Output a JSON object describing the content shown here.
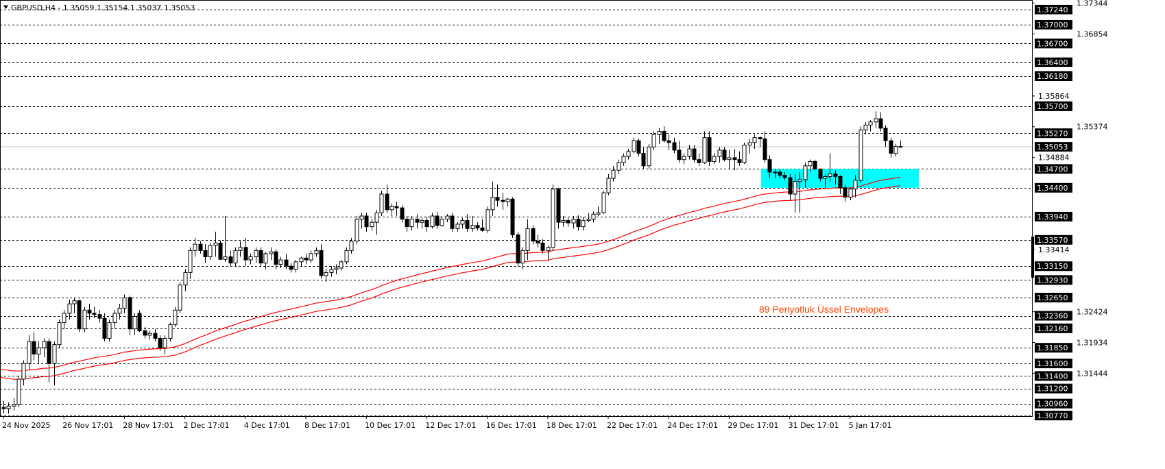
{
  "header": {
    "symbol": "GBPUSD,H4",
    "text": "GBPUSD,H4 - 1.35059 1.35154 1.35037 1.35053",
    "open": 1.35059,
    "high": 1.35154,
    "low": 1.35037,
    "close": 1.35053
  },
  "annotation": "89  Periyotluk Üssel Envelopes",
  "colors": {
    "background": "#ffffff",
    "candle_up": "#ffffff",
    "candle_down": "#000000",
    "envelope": "#ff0000",
    "annotation": "#ff4500",
    "zone": "#00ffff",
    "level_label_bg": "#000000",
    "current_price_line": "#c0c0c0"
  },
  "chart_data": {
    "type": "candlestick",
    "symbol": "GBPUSD",
    "timeframe": "H4",
    "ylim": [
      1.3077,
      1.3734
    ],
    "grid": false,
    "x_tick_labels": [
      "24 Nov 2025",
      "26 Nov 17:01",
      "28 Nov 17:01",
      "2 Dec 17:01",
      "4 Dec 17:01",
      "8 Dec 17:01",
      "10 Dec 17:01",
      "12 Dec 17:01",
      "16 Dec 17:01",
      "18 Dec 17:01",
      "22 Dec 17:01",
      "24 Dec 17:01",
      "29 Dec 17:01",
      "31 Dec 17:01",
      "5 Jan 17:01"
    ],
    "x_tick_every_bars": 12,
    "y_tick_labels": [
      "1.37344",
      "1.36854",
      "1.35864",
      "1.35374",
      "1.34884",
      "1.33414",
      "1.32424",
      "1.31934",
      "1.31444"
    ],
    "levels": [
      "1.37240",
      "1.37000",
      "1.36700",
      "1.36400",
      "1.36180",
      "1.35700",
      "1.35270",
      "1.34700",
      "1.34400",
      "1.33940",
      "1.33570",
      "1.33150",
      "1.32930",
      "1.32650",
      "1.32360",
      "1.32160",
      "1.31850",
      "1.31600",
      "1.31400",
      "1.31200",
      "1.30960",
      "1.30770"
    ],
    "current_price": "1.35053",
    "zone": {
      "from": 1.344,
      "to": 1.347
    },
    "indicator": {
      "name": "Envelopes",
      "period": 89,
      "method": "exponential"
    },
    "ohlc": [
      [
        1.309,
        1.31,
        1.308,
        1.3088
      ],
      [
        1.3088,
        1.3098,
        1.308,
        1.3092
      ],
      [
        1.3092,
        1.3105,
        1.3085,
        1.3095
      ],
      [
        1.3095,
        1.314,
        1.309,
        1.3135
      ],
      [
        1.3135,
        1.3165,
        1.3125,
        1.316
      ],
      [
        1.316,
        1.3205,
        1.315,
        1.3195
      ],
      [
        1.3195,
        1.321,
        1.3165,
        1.3175
      ],
      [
        1.3175,
        1.3195,
        1.316,
        1.3185
      ],
      [
        1.3185,
        1.32,
        1.317,
        1.3195
      ],
      [
        1.3195,
        1.32,
        1.313,
        1.316
      ],
      [
        1.316,
        1.3195,
        1.3125,
        1.319
      ],
      [
        1.319,
        1.323,
        1.3185,
        1.3225
      ],
      [
        1.3225,
        1.3245,
        1.3215,
        1.324
      ],
      [
        1.324,
        1.3262,
        1.323,
        1.3255
      ],
      [
        1.3255,
        1.3265,
        1.324,
        1.326
      ],
      [
        1.326,
        1.3262,
        1.321,
        1.3215
      ],
      [
        1.3215,
        1.325,
        1.321,
        1.3245
      ],
      [
        1.3245,
        1.3255,
        1.323,
        1.324
      ],
      [
        1.324,
        1.325,
        1.3232,
        1.3238
      ],
      [
        1.3238,
        1.3245,
        1.3225,
        1.3232
      ],
      [
        1.3232,
        1.324,
        1.3195,
        1.32
      ],
      [
        1.32,
        1.323,
        1.3195,
        1.3225
      ],
      [
        1.3225,
        1.3245,
        1.3215,
        1.324
      ],
      [
        1.324,
        1.3255,
        1.323,
        1.3248
      ],
      [
        1.3248,
        1.327,
        1.324,
        1.3265
      ],
      [
        1.3265,
        1.3268,
        1.3205,
        1.3215
      ],
      [
        1.3215,
        1.324,
        1.3205,
        1.3235
      ],
      [
        1.324,
        1.3245,
        1.321,
        1.3212
      ],
      [
        1.3212,
        1.3218,
        1.32,
        1.3205
      ],
      [
        1.3205,
        1.3212,
        1.3198,
        1.3208
      ],
      [
        1.3208,
        1.3215,
        1.3195,
        1.32
      ],
      [
        1.32,
        1.3205,
        1.318,
        1.3185
      ],
      [
        1.3185,
        1.3205,
        1.3175,
        1.32
      ],
      [
        1.32,
        1.3225,
        1.3195,
        1.3222
      ],
      [
        1.3222,
        1.325,
        1.3218,
        1.3245
      ],
      [
        1.3245,
        1.329,
        1.324,
        1.3285
      ],
      [
        1.3285,
        1.331,
        1.3275,
        1.3305
      ],
      [
        1.3305,
        1.3345,
        1.3295,
        1.334
      ],
      [
        1.334,
        1.336,
        1.333,
        1.335
      ],
      [
        1.335,
        1.3355,
        1.3335,
        1.334
      ],
      [
        1.334,
        1.335,
        1.332,
        1.333
      ],
      [
        1.333,
        1.3352,
        1.3325,
        1.3348
      ],
      [
        1.3348,
        1.337,
        1.333,
        1.3352
      ],
      [
        1.3352,
        1.3356,
        1.3325,
        1.3326
      ],
      [
        1.3326,
        1.3395,
        1.3322,
        1.333
      ],
      [
        1.333,
        1.334,
        1.3315,
        1.332
      ],
      [
        1.332,
        1.3345,
        1.3315,
        1.334
      ],
      [
        1.334,
        1.3355,
        1.333,
        1.3345
      ],
      [
        1.3345,
        1.336,
        1.3315,
        1.3325
      ],
      [
        1.3325,
        1.3335,
        1.3318,
        1.333
      ],
      [
        1.333,
        1.3345,
        1.332,
        1.334
      ],
      [
        1.334,
        1.3345,
        1.3315,
        1.332
      ],
      [
        1.332,
        1.3338,
        1.331,
        1.3335
      ],
      [
        1.3335,
        1.3345,
        1.3325,
        1.3338
      ],
      [
        1.3338,
        1.3342,
        1.331,
        1.3318
      ],
      [
        1.3318,
        1.333,
        1.3312,
        1.3325
      ],
      [
        1.3325,
        1.3335,
        1.331,
        1.3315
      ],
      [
        1.3315,
        1.332,
        1.3305,
        1.331
      ],
      [
        1.331,
        1.3325,
        1.3305,
        1.3322
      ],
      [
        1.3322,
        1.333,
        1.3315,
        1.3328
      ],
      [
        1.3328,
        1.3335,
        1.3318,
        1.3325
      ],
      [
        1.3325,
        1.334,
        1.332,
        1.3335
      ],
      [
        1.3335,
        1.3345,
        1.333,
        1.334
      ],
      [
        1.334,
        1.335,
        1.3295,
        1.33
      ],
      [
        1.33,
        1.331,
        1.329,
        1.3305
      ],
      [
        1.3305,
        1.3315,
        1.3298,
        1.331
      ],
      [
        1.331,
        1.3318,
        1.3302,
        1.3312
      ],
      [
        1.3312,
        1.3325,
        1.3308,
        1.3322
      ],
      [
        1.3322,
        1.3345,
        1.3318,
        1.334
      ],
      [
        1.334,
        1.336,
        1.3335,
        1.3355
      ],
      [
        1.3355,
        1.3395,
        1.335,
        1.339
      ],
      [
        1.339,
        1.34,
        1.3375,
        1.3395
      ],
      [
        1.3395,
        1.34,
        1.337,
        1.3378
      ],
      [
        1.3378,
        1.339,
        1.3372,
        1.3385
      ],
      [
        1.3385,
        1.3405,
        1.3365,
        1.34
      ],
      [
        1.34,
        1.3435,
        1.3395,
        1.343
      ],
      [
        1.343,
        1.3445,
        1.34,
        1.3405
      ],
      [
        1.3405,
        1.3415,
        1.3395,
        1.341
      ],
      [
        1.341,
        1.3418,
        1.3395,
        1.3408
      ],
      [
        1.3408,
        1.3412,
        1.3385,
        1.339
      ],
      [
        1.339,
        1.3395,
        1.337,
        1.3378
      ],
      [
        1.3378,
        1.3395,
        1.3372,
        1.339
      ],
      [
        1.339,
        1.3398,
        1.3375,
        1.3385
      ],
      [
        1.3385,
        1.3392,
        1.3375,
        1.3388
      ],
      [
        1.3388,
        1.3394,
        1.337,
        1.3378
      ],
      [
        1.3378,
        1.34,
        1.3375,
        1.3395
      ],
      [
        1.3395,
        1.3402,
        1.3375,
        1.338
      ],
      [
        1.338,
        1.3395,
        1.3378,
        1.339
      ],
      [
        1.339,
        1.3398,
        1.3385,
        1.3395
      ],
      [
        1.3395,
        1.34,
        1.337,
        1.3375
      ],
      [
        1.3375,
        1.3385,
        1.337,
        1.3382
      ],
      [
        1.3382,
        1.3392,
        1.3375,
        1.3388
      ],
      [
        1.3388,
        1.3398,
        1.337,
        1.3375
      ],
      [
        1.3375,
        1.3395,
        1.337,
        1.338
      ],
      [
        1.338,
        1.3385,
        1.3372,
        1.3376
      ],
      [
        1.3376,
        1.339,
        1.337,
        1.3372
      ],
      [
        1.3372,
        1.341,
        1.3368,
        1.3405
      ],
      [
        1.3405,
        1.345,
        1.3395,
        1.3425
      ],
      [
        1.3425,
        1.3445,
        1.341,
        1.342
      ],
      [
        1.342,
        1.3432,
        1.3405,
        1.3418
      ],
      [
        1.3418,
        1.3424,
        1.341,
        1.3422
      ],
      [
        1.3422,
        1.3425,
        1.336,
        1.3365
      ],
      [
        1.3365,
        1.337,
        1.3315,
        1.332
      ],
      [
        1.332,
        1.3345,
        1.331,
        1.334
      ],
      [
        1.334,
        1.339,
        1.3325,
        1.3375
      ],
      [
        1.3375,
        1.338,
        1.335,
        1.3355
      ],
      [
        1.3355,
        1.3365,
        1.3345,
        1.3352
      ],
      [
        1.3352,
        1.3358,
        1.3335,
        1.334
      ],
      [
        1.334,
        1.3348,
        1.3325,
        1.3345
      ],
      [
        1.3345,
        1.3445,
        1.334,
        1.3438
      ],
      [
        1.3438,
        1.344,
        1.3375,
        1.3385
      ],
      [
        1.3385,
        1.3395,
        1.3378,
        1.3388
      ],
      [
        1.3388,
        1.3392,
        1.3378,
        1.3384
      ],
      [
        1.3384,
        1.3395,
        1.3375,
        1.339
      ],
      [
        1.339,
        1.3396,
        1.3372,
        1.3378
      ],
      [
        1.3378,
        1.3394,
        1.3372,
        1.3388
      ],
      [
        1.3388,
        1.34,
        1.3385,
        1.339
      ],
      [
        1.339,
        1.3402,
        1.3385,
        1.3398
      ],
      [
        1.3398,
        1.341,
        1.3395,
        1.34
      ],
      [
        1.34,
        1.3435,
        1.3398,
        1.3432
      ],
      [
        1.3432,
        1.3462,
        1.3428,
        1.3455
      ],
      [
        1.3455,
        1.3475,
        1.345,
        1.3468
      ],
      [
        1.3468,
        1.3485,
        1.3462,
        1.348
      ],
      [
        1.348,
        1.3495,
        1.3475,
        1.349
      ],
      [
        1.349,
        1.3502,
        1.3485,
        1.3498
      ],
      [
        1.3498,
        1.352,
        1.3495,
        1.3515
      ],
      [
        1.3515,
        1.3518,
        1.349,
        1.3495
      ],
      [
        1.3495,
        1.3505,
        1.347,
        1.3475
      ],
      [
        1.3475,
        1.351,
        1.347,
        1.3505
      ],
      [
        1.3505,
        1.353,
        1.35,
        1.3525
      ],
      [
        1.3525,
        1.3535,
        1.351,
        1.353
      ],
      [
        1.353,
        1.3538,
        1.3512,
        1.3515
      ],
      [
        1.3515,
        1.3525,
        1.35,
        1.3512
      ],
      [
        1.3512,
        1.352,
        1.3495,
        1.35
      ],
      [
        1.35,
        1.3515,
        1.348,
        1.3485
      ],
      [
        1.3485,
        1.3495,
        1.3478,
        1.349
      ],
      [
        1.349,
        1.3508,
        1.3485,
        1.3502
      ],
      [
        1.3502,
        1.3508,
        1.348,
        1.3485
      ],
      [
        1.3485,
        1.3495,
        1.3475,
        1.348
      ],
      [
        1.348,
        1.353,
        1.3478,
        1.352
      ],
      [
        1.352,
        1.353,
        1.3475,
        1.3482
      ],
      [
        1.3482,
        1.3495,
        1.3478,
        1.349
      ],
      [
        1.349,
        1.3505,
        1.348,
        1.35
      ],
      [
        1.35,
        1.3505,
        1.3482,
        1.3485
      ],
      [
        1.3485,
        1.35,
        1.347,
        1.3488
      ],
      [
        1.3488,
        1.3502,
        1.3468,
        1.3485
      ],
      [
        1.3485,
        1.3498,
        1.3475,
        1.348
      ],
      [
        1.348,
        1.3512,
        1.3478,
        1.3508
      ],
      [
        1.3508,
        1.3518,
        1.3495,
        1.3512
      ],
      [
        1.3512,
        1.3525,
        1.3502,
        1.352
      ],
      [
        1.352,
        1.3522,
        1.3505,
        1.3518
      ],
      [
        1.3518,
        1.353,
        1.348,
        1.3485
      ],
      [
        1.3485,
        1.3492,
        1.3455,
        1.3465
      ],
      [
        1.3465,
        1.347,
        1.3455,
        1.3465
      ],
      [
        1.3465,
        1.347,
        1.3455,
        1.346
      ],
      [
        1.346,
        1.3465,
        1.3452,
        1.3456
      ],
      [
        1.3456,
        1.3462,
        1.342,
        1.343
      ],
      [
        1.343,
        1.3462,
        1.34,
        1.345
      ],
      [
        1.345,
        1.3465,
        1.34,
        1.3453
      ],
      [
        1.3453,
        1.348,
        1.344,
        1.3475
      ],
      [
        1.3475,
        1.3485,
        1.3465,
        1.3482
      ],
      [
        1.3482,
        1.3485,
        1.3468,
        1.347
      ],
      [
        1.347,
        1.347,
        1.345,
        1.3455
      ],
      [
        1.3455,
        1.3462,
        1.344,
        1.3458
      ],
      [
        1.3458,
        1.3495,
        1.345,
        1.3462
      ],
      [
        1.3462,
        1.3468,
        1.3445,
        1.3458
      ],
      [
        1.3458,
        1.346,
        1.343,
        1.344
      ],
      [
        1.344,
        1.3445,
        1.3418,
        1.3425
      ],
      [
        1.3425,
        1.344,
        1.342,
        1.3438
      ],
      [
        1.3438,
        1.346,
        1.3425,
        1.3452
      ],
      [
        1.3452,
        1.3538,
        1.3448,
        1.3532
      ],
      [
        1.3532,
        1.3545,
        1.3525,
        1.354
      ],
      [
        1.354,
        1.3548,
        1.353,
        1.3545
      ],
      [
        1.3545,
        1.3562,
        1.3535,
        1.355
      ],
      [
        1.355,
        1.356,
        1.353,
        1.3535
      ],
      [
        1.3535,
        1.354,
        1.3505,
        1.3515
      ],
      [
        1.3515,
        1.352,
        1.3488,
        1.3495
      ],
      [
        1.3495,
        1.351,
        1.349,
        1.3506
      ],
      [
        1.35059,
        1.35154,
        1.35037,
        1.35053
      ]
    ]
  }
}
